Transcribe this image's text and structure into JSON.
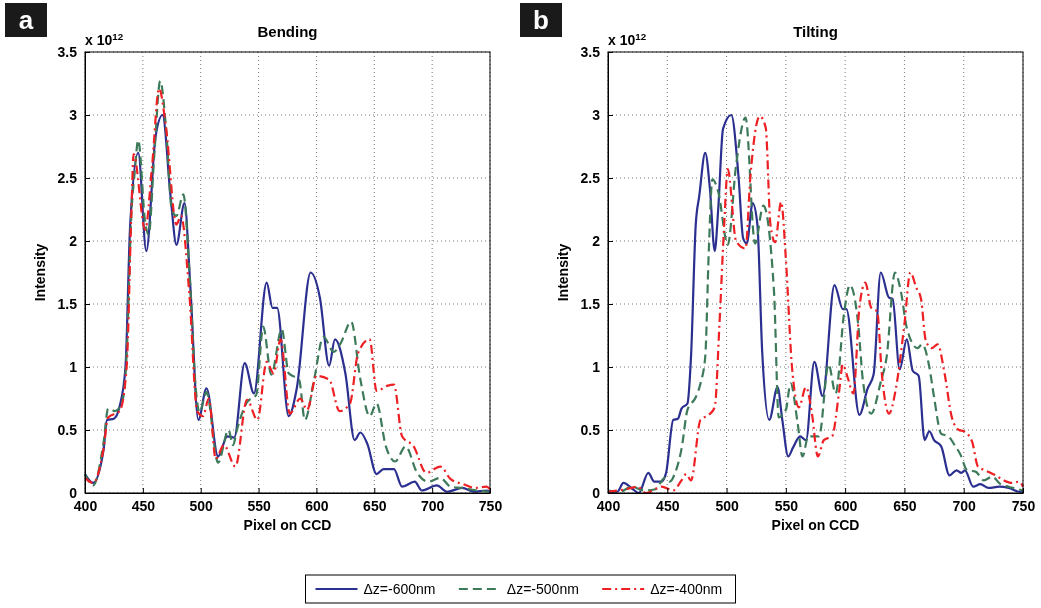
{
  "chart_data": [
    {
      "type": "line",
      "title": "Bending",
      "xlabel": "Pixel on CCD",
      "ylabel": "Intensity",
      "annotations": [
        "a",
        "x 10$^{12}$"
      ],
      "xlim": [
        400,
        750
      ],
      "ylim": [
        0,
        3.5
      ],
      "xticks": [
        400,
        450,
        500,
        550,
        600,
        650,
        700,
        750
      ],
      "yticks": [
        0,
        0.5,
        1,
        1.5,
        2,
        2.5,
        3,
        3.5
      ],
      "grid": true,
      "legend": "bottom",
      "series": [
        {
          "name": "Δz=-600nm",
          "color": "#2b2f8f",
          "line_style": "solid",
          "x": [
            400,
            407,
            416,
            419,
            425,
            430,
            435,
            439,
            446,
            453,
            461,
            467,
            474,
            479,
            486,
            491,
            498,
            505,
            515,
            523,
            529,
            538,
            546,
            557,
            562,
            566,
            576,
            583,
            595,
            603,
            611,
            616,
            625,
            633,
            638,
            644,
            652,
            658,
            667,
            674,
            685,
            691,
            704,
            713,
            726,
            736,
            747,
            750
          ],
          "values": [
            0.15,
            0.08,
            0.34,
            0.58,
            0.59,
            0.69,
            1.0,
            2.12,
            2.7,
            1.92,
            2.83,
            3.0,
            2.35,
            1.97,
            2.3,
            1.64,
            0.58,
            0.83,
            0.29,
            0.45,
            0.44,
            1.03,
            0.79,
            1.67,
            1.47,
            1.47,
            0.61,
            0.83,
            1.75,
            1.55,
            1.01,
            1.22,
            0.95,
            0.42,
            0.48,
            0.39,
            0.15,
            0.19,
            0.19,
            0.05,
            0.09,
            0.02,
            0.06,
            0.01,
            0.04,
            0.01,
            0.02,
            0.01
          ]
        },
        {
          "name": "Δz=-500nm",
          "color": "#3d7a5a",
          "line_style": "dashed",
          "x": [
            400,
            407,
            416,
            420,
            426,
            432,
            436,
            440,
            443,
            446,
            452,
            455,
            460,
            465,
            470,
            475,
            479,
            485,
            490,
            496,
            499,
            505,
            515,
            524,
            528,
            531,
            540,
            548,
            554,
            561,
            570,
            576,
            585,
            590,
            598,
            606,
            615,
            621,
            630,
            638,
            646,
            652,
            660,
            668,
            677,
            687,
            697,
            707,
            716,
            726,
            739,
            749
          ],
          "values": [
            0.15,
            0.06,
            0.4,
            0.67,
            0.65,
            0.72,
            1.1,
            2.2,
            2.55,
            2.8,
            2.15,
            2.05,
            2.7,
            3.27,
            2.9,
            2.25,
            2.2,
            2.37,
            1.8,
            0.8,
            0.64,
            0.8,
            0.24,
            0.5,
            0.38,
            0.49,
            0.72,
            0.78,
            1.32,
            0.94,
            1.3,
            0.95,
            0.9,
            0.58,
            0.9,
            1.24,
            1.12,
            1.19,
            1.36,
            0.9,
            0.61,
            0.71,
            0.37,
            0.25,
            0.37,
            0.16,
            0.09,
            0.12,
            0.05,
            0.04,
            0.02,
            0.01
          ]
        },
        {
          "name": "Δz=-400nm",
          "color": "#ee2024",
          "line_style": "dashdot",
          "x": [
            400,
            407,
            416,
            420,
            430,
            436,
            440,
            442,
            452,
            458,
            464,
            470,
            479,
            483,
            490,
            497,
            502,
            507,
            513,
            520,
            530,
            540,
            549,
            557,
            563,
            569,
            577,
            586,
            592,
            600,
            611,
            620,
            629,
            636,
            646,
            652,
            661,
            667,
            674,
            684,
            695,
            707,
            716,
            727,
            737,
            747,
            750
          ],
          "values": [
            0.12,
            0.08,
            0.35,
            0.6,
            0.65,
            1.0,
            2.2,
            2.69,
            2.09,
            2.6,
            3.21,
            2.9,
            2.13,
            2.2,
            1.6,
            0.65,
            0.61,
            0.75,
            0.27,
            0.38,
            0.21,
            0.74,
            0.58,
            1.04,
            0.95,
            1.22,
            0.63,
            0.75,
            0.66,
            0.93,
            0.9,
            0.65,
            0.71,
            1.11,
            1.22,
            0.81,
            0.85,
            0.86,
            0.45,
            0.37,
            0.16,
            0.21,
            0.11,
            0.07,
            0.04,
            0.05,
            0.03
          ]
        }
      ]
    },
    {
      "type": "line",
      "title": "Tilting",
      "xlabel": "Pixel on CCD",
      "ylabel": "Intensity",
      "annotations": [
        "b",
        "x 10$^{12}$"
      ],
      "xlim": [
        400,
        750
      ],
      "ylim": [
        0,
        3.5
      ],
      "xticks": [
        400,
        450,
        500,
        550,
        600,
        650,
        700,
        750
      ],
      "yticks": [
        0,
        0.5,
        1,
        1.5,
        2,
        2.5,
        3,
        3.5
      ],
      "grid": true,
      "series": [
        {
          "color": "#2b2f8f",
          "line_style": "solid",
          "x": [
            400,
            408,
            413,
            421,
            426,
            434,
            439,
            445,
            449,
            455,
            459,
            462,
            467,
            470,
            474,
            477,
            482,
            486,
            490,
            493,
            497,
            504,
            510,
            514,
            517,
            522,
            526,
            530,
            536,
            543,
            547,
            552,
            556,
            562,
            567,
            574,
            581,
            591,
            598,
            601,
            612,
            619,
            624,
            630,
            637,
            640,
            646,
            652,
            657,
            662,
            667,
            671,
            675,
            681,
            688,
            694,
            698,
            701,
            708,
            714,
            721,
            730,
            738,
            747,
            750
          ],
          "values": [
            0,
            0.01,
            0.08,
            0.03,
            0,
            0.16,
            0.09,
            0.09,
            0.16,
            0.58,
            0.59,
            0.67,
            0.71,
            1.08,
            2.13,
            2.36,
            2.7,
            2.41,
            1.92,
            2.26,
            2.89,
            3.0,
            2.52,
            2.02,
            1.98,
            2.3,
            2.13,
            1.13,
            0.58,
            0.84,
            0.58,
            0.29,
            0.36,
            0.45,
            0.42,
            1.04,
            0.77,
            1.65,
            1.46,
            1.46,
            0.62,
            0.83,
            0.94,
            1.75,
            1.55,
            1.54,
            0.98,
            1.22,
            0.97,
            0.93,
            0.42,
            0.49,
            0.42,
            0.37,
            0.14,
            0.18,
            0.16,
            0.18,
            0.05,
            0.07,
            0.04,
            0.05,
            0.04,
            0.01,
            0.01
          ]
        },
        {
          "color": "#3d7a5a",
          "line_style": "dashed",
          "x": [
            400,
            410,
            420,
            430,
            440,
            448,
            452,
            457,
            462,
            467,
            474,
            478,
            482,
            485,
            488,
            493,
            501,
            508,
            516,
            524,
            531,
            540,
            544,
            550,
            554,
            560,
            564,
            569,
            578,
            586,
            592,
            599,
            604,
            611,
            615,
            622,
            630,
            635,
            642,
            647,
            652,
            661,
            665,
            671,
            675,
            681,
            687,
            693,
            697,
            703,
            710,
            717,
            724,
            731,
            738,
            746,
            750
          ],
          "values": [
            0.02,
            0.01,
            0.05,
            0.02,
            0.03,
            0.12,
            0.09,
            0.17,
            0.35,
            0.66,
            0.76,
            0.87,
            1.08,
            1.92,
            2.49,
            2.39,
            1.97,
            2.6,
            2.98,
            1.98,
            2.28,
            1.6,
            0.6,
            0.66,
            0.87,
            0.55,
            0.29,
            0.45,
            0.45,
            1.02,
            0.79,
            1.42,
            1.65,
            1.34,
            0.89,
            0.63,
            0.88,
            1.08,
            1.75,
            1.6,
            1.31,
            1.15,
            1.18,
            1.0,
            0.76,
            0.47,
            0.45,
            0.37,
            0.31,
            0.18,
            0.17,
            0.1,
            0.13,
            0.07,
            0.05,
            0.03,
            0.02
          ]
        },
        {
          "color": "#ee2024",
          "line_style": "dashdot",
          "x": [
            400,
            415,
            425,
            432,
            445,
            455,
            462,
            466,
            470,
            478,
            485,
            490,
            494,
            498,
            501,
            508,
            516,
            520,
            528,
            533,
            537,
            541,
            546,
            550,
            555,
            561,
            567,
            572,
            577,
            582,
            589,
            595,
            598,
            602,
            607,
            612,
            617,
            622,
            627,
            631,
            637,
            643,
            650,
            655,
            660,
            664,
            668,
            673,
            678,
            684,
            690,
            696,
            700,
            707,
            712,
            718,
            727,
            734,
            741,
            747,
            750
          ],
          "values": [
            0.01,
            0.03,
            0.05,
            0,
            0.05,
            0.02,
            0.1,
            0.15,
            0.1,
            0.58,
            0.62,
            0.68,
            1.34,
            2.13,
            2.57,
            2.0,
            1.94,
            2.5,
            2.99,
            2.9,
            2.13,
            1.99,
            2.31,
            1.86,
            1.02,
            0.68,
            0.84,
            0.63,
            0.29,
            0.42,
            0.45,
            0.81,
            1.02,
            0.92,
            0.79,
            1.47,
            1.67,
            1.47,
            1.44,
            0.94,
            0.63,
            0.84,
            1.34,
            1.75,
            1.63,
            1.54,
            1.21,
            1.15,
            1.18,
            0.94,
            0.6,
            0.5,
            0.49,
            0.41,
            0.21,
            0.18,
            0.14,
            0.1,
            0.08,
            0.09,
            0.05
          ]
        }
      ]
    }
  ]
}
